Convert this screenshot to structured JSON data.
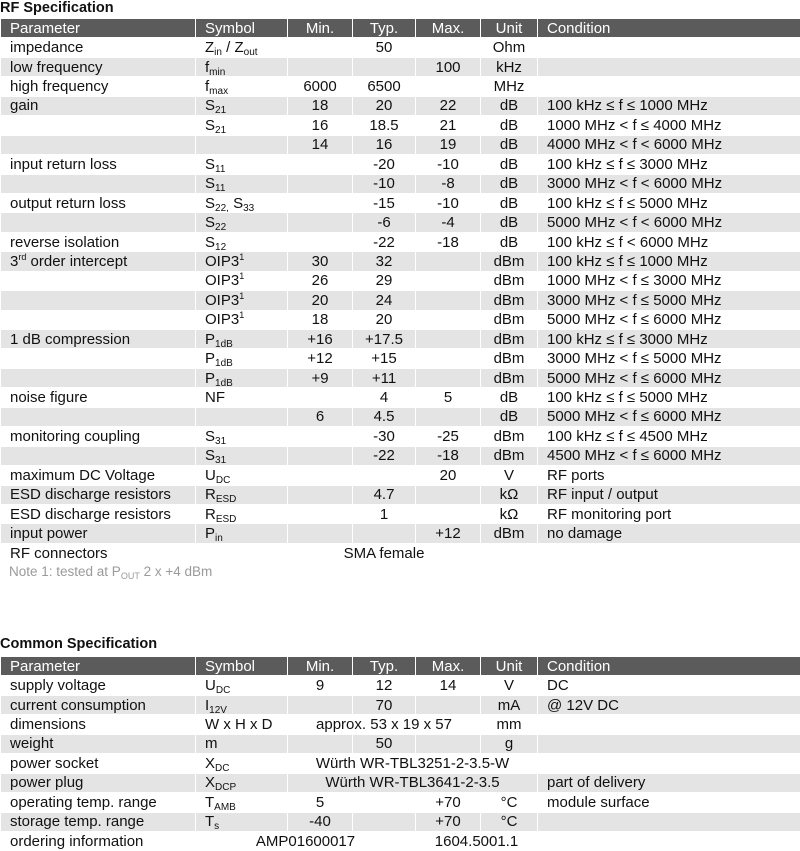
{
  "rf": {
    "title": "RF Specification",
    "headers": [
      "Parameter",
      "Symbol",
      "Min.",
      "Typ.",
      "Max.",
      "Unit",
      "Condition"
    ],
    "rows": [
      {
        "param": "impedance",
        "symbol": [
          [
            "Z"
          ],
          [
            "in",
            "sub"
          ],
          [
            " / Z"
          ],
          [
            "out",
            "sub"
          ]
        ],
        "min": "",
        "typ": "50",
        "max": "",
        "unit": "Ohm",
        "condition": ""
      },
      {
        "param": "low frequency",
        "symbol": [
          [
            "f"
          ],
          [
            "min",
            "sub"
          ]
        ],
        "min": "",
        "typ": "",
        "max": "100",
        "unit": "kHz",
        "condition": ""
      },
      {
        "param": "high frequency",
        "symbol": [
          [
            "f"
          ],
          [
            "max",
            "sub"
          ]
        ],
        "min": "6000",
        "typ": "6500",
        "max": "",
        "unit": "MHz",
        "condition": ""
      },
      {
        "param": "gain",
        "symbol": [
          [
            "S"
          ],
          [
            "21",
            "sub"
          ]
        ],
        "min": "18",
        "typ": "20",
        "max": "22",
        "unit": "dB",
        "condition": "100 kHz ≤ f ≤ 1000 MHz"
      },
      {
        "param": "",
        "symbol": [
          [
            "S"
          ],
          [
            "21",
            "sub"
          ]
        ],
        "min": "16",
        "typ": "18.5",
        "max": "21",
        "unit": "dB",
        "condition": "1000 MHz < f ≤ 4000 MHz"
      },
      {
        "param": "",
        "symbol": [],
        "min": "14",
        "typ": "16",
        "max": "19",
        "unit": "dB",
        "condition": "4000 MHz < f < 6000 MHz"
      },
      {
        "param": "input return loss",
        "symbol": [
          [
            "S"
          ],
          [
            "11",
            "sub"
          ]
        ],
        "min": "",
        "typ": "-20",
        "max": "-10",
        "unit": "dB",
        "condition": "100 kHz ≤ f ≤ 3000 MHz"
      },
      {
        "param": "",
        "symbol": [
          [
            "S"
          ],
          [
            "11",
            "sub"
          ]
        ],
        "min": "",
        "typ": "-10",
        "max": "-8",
        "unit": "dB",
        "condition": "3000 MHz < f < 6000 MHz"
      },
      {
        "param": "output return loss",
        "symbol": [
          [
            "S"
          ],
          [
            "22,",
            "sub"
          ],
          [
            " S"
          ],
          [
            "33",
            "sub"
          ]
        ],
        "min": "",
        "typ": "-15",
        "max": "-10",
        "unit": "dB",
        "condition": "100 kHz ≤ f ≤ 5000 MHz"
      },
      {
        "param": "",
        "symbol": [
          [
            "S"
          ],
          [
            "22",
            "sub"
          ]
        ],
        "min": "",
        "typ": "-6",
        "max": "-4",
        "unit": "dB",
        "condition": "5000 MHz < f < 6000 MHz"
      },
      {
        "param": "reverse isolation",
        "symbol": [
          [
            "S"
          ],
          [
            "12",
            "sub"
          ]
        ],
        "min": "",
        "typ": "-22",
        "max": "-18",
        "unit": "dB",
        "condition": "100 kHz ≤ f < 6000 MHz"
      },
      {
        "param": [
          [
            "3"
          ],
          [
            "rd",
            "sup"
          ],
          [
            " order intercept"
          ]
        ],
        "symbol": [
          [
            "OIP3"
          ],
          [
            "1",
            "sup"
          ]
        ],
        "min": "30",
        "typ": "32",
        "max": "",
        "unit": "dBm",
        "condition": "100 kHz ≤ f ≤ 1000 MHz"
      },
      {
        "param": "",
        "symbol": [
          [
            "OIP3"
          ],
          [
            "1",
            "sup"
          ]
        ],
        "min": "26",
        "typ": "29",
        "max": "",
        "unit": "dBm",
        "condition": "1000 MHz < f ≤ 3000 MHz"
      },
      {
        "param": "",
        "symbol": [
          [
            "OIP3"
          ],
          [
            "1",
            "sup"
          ]
        ],
        "min": "20",
        "typ": "24",
        "max": "",
        "unit": "dBm",
        "condition": "3000 MHz < f ≤ 5000 MHz"
      },
      {
        "param": "",
        "symbol": [
          [
            "OIP3"
          ],
          [
            "1",
            "sup"
          ]
        ],
        "min": "18",
        "typ": "20",
        "max": "",
        "unit": "dBm",
        "condition": "5000 MHz < f ≤ 6000 MHz"
      },
      {
        "param": "1 dB compression",
        "symbol": [
          [
            "P"
          ],
          [
            "1dB",
            "sub"
          ]
        ],
        "min": "+16",
        "typ": "+17.5",
        "max": "",
        "unit": "dBm",
        "condition": "100 kHz ≤ f ≤ 3000 MHz"
      },
      {
        "param": "",
        "symbol": [
          [
            "P"
          ],
          [
            "1dB",
            "sub"
          ]
        ],
        "min": "+12",
        "typ": "+15",
        "max": "",
        "unit": "dBm",
        "condition": "3000 MHz < f ≤ 5000 MHz"
      },
      {
        "param": "",
        "symbol": [
          [
            "P"
          ],
          [
            "1dB",
            "sub"
          ]
        ],
        "min": "+9",
        "typ": "+11",
        "max": "",
        "unit": "dBm",
        "condition": "5000 MHz < f ≤ 6000 MHz"
      },
      {
        "param": "noise figure",
        "symbol": [
          [
            "NF"
          ]
        ],
        "min": "",
        "typ": "4",
        "max": "5",
        "unit": "dB",
        "condition": "100 kHz ≤ f ≤ 5000 MHz"
      },
      {
        "param": "",
        "symbol": [],
        "min": "6",
        "typ": "4.5",
        "max": "",
        "unit": "dB",
        "condition": "5000 MHz < f ≤ 6000 MHz"
      },
      {
        "param": "monitoring coupling",
        "symbol": [
          [
            "S"
          ],
          [
            "31",
            "sub"
          ]
        ],
        "min": "",
        "typ": "-30",
        "max": "-25",
        "unit": "dBm",
        "condition": "100 kHz ≤ f ≤ 4500 MHz"
      },
      {
        "param": "",
        "symbol": [
          [
            "S"
          ],
          [
            "31",
            "sub"
          ]
        ],
        "min": "",
        "typ": "-22",
        "max": "-18",
        "unit": "dBm",
        "condition": "4500 MHz < f ≤ 6000 MHz"
      },
      {
        "param": "maximum DC Voltage",
        "symbol": [
          [
            "U"
          ],
          [
            "DC",
            "sub"
          ]
        ],
        "min": "",
        "typ": "",
        "max": "20",
        "unit": "V",
        "condition": "RF ports"
      },
      {
        "param": "ESD discharge resistors",
        "symbol": [
          [
            "R"
          ],
          [
            "ESD",
            "sub"
          ]
        ],
        "min": "",
        "typ": "4.7",
        "max": "",
        "unit": "kΩ",
        "condition": "RF input / output"
      },
      {
        "param": "ESD discharge resistors",
        "symbol": [
          [
            "R"
          ],
          [
            "ESD",
            "sub"
          ]
        ],
        "min": "",
        "typ": "1",
        "max": "",
        "unit": "kΩ",
        "condition": "RF monitoring port"
      },
      {
        "param": "input power",
        "symbol": [
          [
            "P"
          ],
          [
            "in",
            "sub"
          ]
        ],
        "min": "",
        "typ": "",
        "max": "+12",
        "unit": "dBm",
        "condition": "no damage"
      },
      {
        "param": "RF connectors",
        "symbol": [],
        "merged": {
          "text": "SMA female",
          "from": "min",
          "to": "max"
        },
        "unit": "",
        "condition": ""
      }
    ],
    "note": [
      [
        "Note 1: tested at P"
      ],
      [
        "OUT",
        "sub"
      ],
      [
        " 2 x +4 dBm"
      ]
    ]
  },
  "common": {
    "title": "Common Specification",
    "headers": [
      "Parameter",
      "Symbol",
      "Min.",
      "Typ.",
      "Max.",
      "Unit",
      "Condition"
    ],
    "rows": [
      {
        "param": "supply voltage",
        "symbol": [
          [
            "U"
          ],
          [
            "DC",
            "sub"
          ]
        ],
        "min": "9",
        "typ": "12",
        "max": "14",
        "unit": "V",
        "condition": "DC"
      },
      {
        "param": "current consumption",
        "symbol": [
          [
            "I"
          ],
          [
            "12V",
            "sub"
          ]
        ],
        "min": "",
        "typ": "70",
        "max": "",
        "unit": "mA",
        "condition": "@ 12V DC"
      },
      {
        "param": "dimensions",
        "symbol": [
          [
            "W x H x D"
          ]
        ],
        "merged": {
          "text": "approx. 53 x 19 x 57",
          "from": "min",
          "to": "max"
        },
        "unit": "mm",
        "condition": ""
      },
      {
        "param": "weight",
        "symbol": [
          [
            "m"
          ]
        ],
        "min": "",
        "typ": "50",
        "max": "",
        "unit": "g",
        "condition": ""
      },
      {
        "param": "power socket",
        "symbol": [
          [
            "X"
          ],
          [
            "DC",
            "sub"
          ]
        ],
        "merged": {
          "text": "Würth WR-TBL3251-2-3.5-W",
          "from": "min",
          "to": "unit"
        },
        "condition": ""
      },
      {
        "param": "power plug",
        "symbol": [
          [
            "X"
          ],
          [
            "DCP",
            "sub"
          ]
        ],
        "merged": {
          "text": "Würth WR-TBL3641-2-3.5",
          "from": "min",
          "to": "unit"
        },
        "condition": "part of delivery"
      },
      {
        "param": "operating temp. range",
        "symbol": [
          [
            "T"
          ],
          [
            "AMB",
            "sub"
          ]
        ],
        "min": "5",
        "typ": "",
        "max": "+70",
        "unit": "°C",
        "condition": "module surface"
      },
      {
        "param": "storage temp. range",
        "symbol": [
          [
            "T"
          ],
          [
            "s",
            "sub"
          ]
        ],
        "min": "-40",
        "typ": "",
        "max": "+70",
        "unit": "°C",
        "condition": ""
      },
      {
        "param": "ordering information",
        "merged": {
          "text": "AMP01600017",
          "from": "symbol",
          "to": "typ"
        },
        "merged2": {
          "text": "1604.5001.1",
          "from": "max",
          "to": "unit"
        },
        "condition": ""
      }
    ]
  },
  "colors": {
    "header_bg": "#5b5b5b",
    "stripe": "#e4e4e4",
    "note": "#9a9a9a"
  }
}
